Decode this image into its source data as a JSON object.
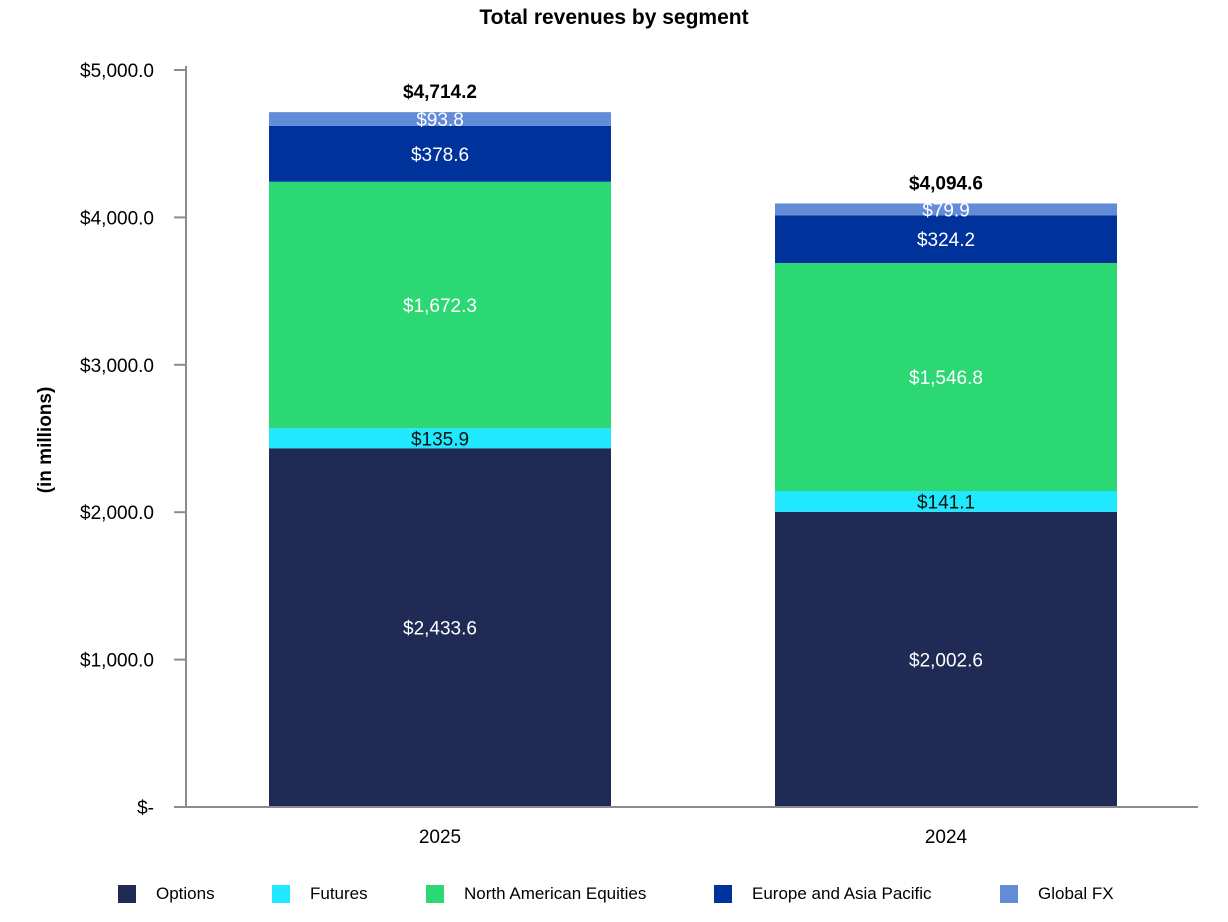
{
  "chart_data": {
    "type": "bar",
    "stacked": true,
    "title": "Total revenues by segment",
    "ylabel": "(in millions)",
    "xlabel": "",
    "categories": [
      "2025",
      "2024"
    ],
    "ylim": [
      0,
      5000
    ],
    "yticks": [
      {
        "value": 0,
        "label": "$-"
      },
      {
        "value": 1000,
        "label": "$1,000.0"
      },
      {
        "value": 2000,
        "label": "$2,000.0"
      },
      {
        "value": 3000,
        "label": "$3,000.0"
      },
      {
        "value": 4000,
        "label": "$4,000.0"
      },
      {
        "value": 5000,
        "label": "$5,000.0"
      }
    ],
    "series": [
      {
        "name": "Options",
        "color": "#1f2a55",
        "label_color": "#ffffff",
        "values": [
          2433.6,
          2002.6
        ],
        "labels": [
          "$2,433.6",
          "$2,002.6"
        ]
      },
      {
        "name": "Futures",
        "color": "#1fe8ff",
        "label_color": "#111111",
        "values": [
          135.9,
          141.1
        ],
        "labels": [
          "$135.9",
          "$141.1"
        ]
      },
      {
        "name": "North American Equities",
        "color": "#2cd874",
        "label_color": "#ffffff",
        "values": [
          1672.3,
          1546.8
        ],
        "labels": [
          "$1,672.3",
          "$1,546.8"
        ]
      },
      {
        "name": "Europe and Asia Pacific",
        "color": "#00329b",
        "label_color": "#ffffff",
        "values": [
          378.6,
          324.2
        ],
        "labels": [
          "$378.6",
          "$324.2"
        ]
      },
      {
        "name": "Global FX",
        "color": "#638cd8",
        "label_color": "#ffffff",
        "values": [
          93.8,
          79.9
        ],
        "labels": [
          "$93.8",
          "$79.9"
        ]
      }
    ],
    "totals": [
      4714.2,
      4094.6
    ],
    "total_labels": [
      "$4,714.2",
      "$4,094.6"
    ],
    "legend_position": "bottom",
    "grid": false
  }
}
